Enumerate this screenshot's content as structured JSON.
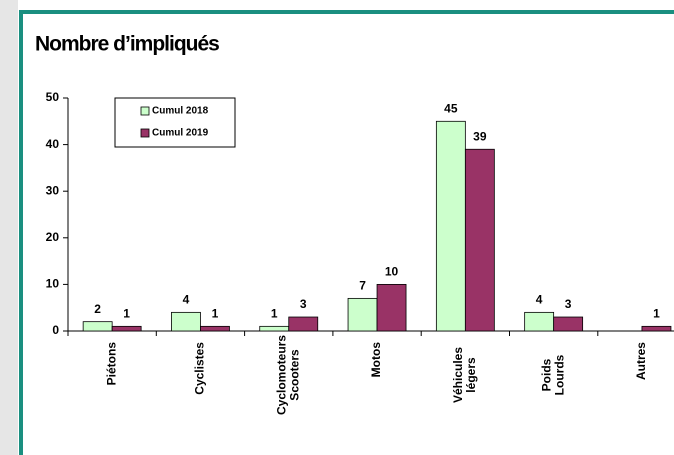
{
  "chart_data": {
    "type": "bar",
    "title": "Nombre d’impliqués",
    "categories": [
      [
        "Piétons"
      ],
      [
        "Cyclistes"
      ],
      [
        "Cyclomoteurs",
        "Scooters"
      ],
      [
        "Motos"
      ],
      [
        "Véhicules",
        "légers"
      ],
      [
        "Poids",
        "Lourds"
      ],
      [
        "Autres"
      ]
    ],
    "series": [
      {
        "name": "Cumul 2018",
        "color": "#ccffcc",
        "values": [
          2,
          4,
          1,
          7,
          45,
          4,
          null
        ]
      },
      {
        "name": "Cumul 2019",
        "color": "#993366",
        "values": [
          1,
          1,
          3,
          10,
          39,
          3,
          1
        ]
      }
    ],
    "ylim": [
      0,
      50
    ],
    "yticks": [
      0,
      10,
      20,
      30,
      40,
      50
    ],
    "legend": "top-left"
  }
}
